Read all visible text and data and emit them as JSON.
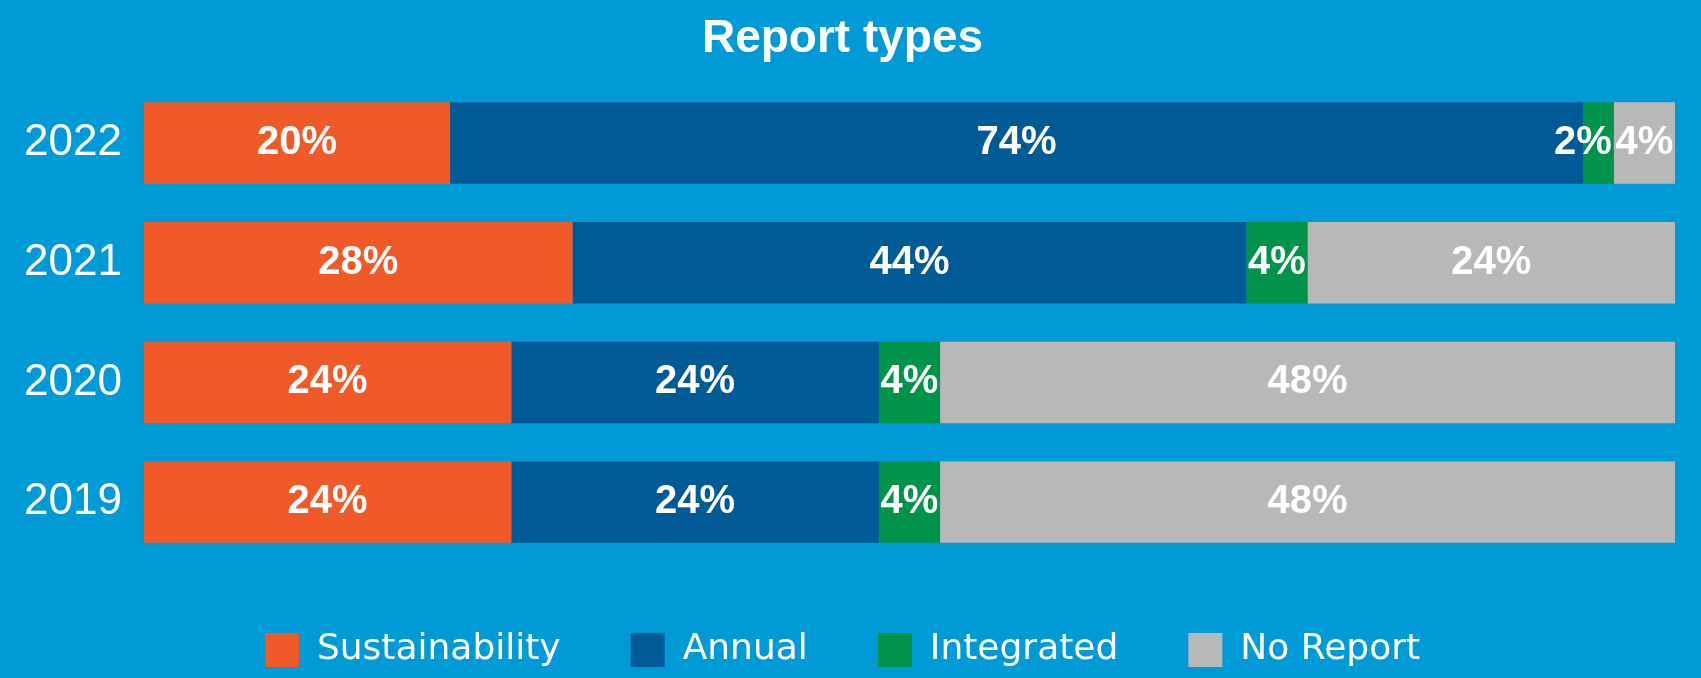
{
  "chart_data": {
    "type": "bar",
    "orientation": "horizontal",
    "stacked": true,
    "title": "Report types",
    "categories": [
      "2022",
      "2021",
      "2020",
      "2019"
    ],
    "series": [
      {
        "name": "Sustainability",
        "color": "#f05a28",
        "values": [
          20,
          28,
          24,
          24
        ],
        "value_labels": [
          "20%",
          "28%",
          "24%",
          "24%"
        ]
      },
      {
        "name": "Annual",
        "color": "#005a96",
        "values": [
          74,
          44,
          24,
          24
        ],
        "value_labels": [
          "74%",
          "44%",
          "24%",
          "24%"
        ]
      },
      {
        "name": "Integrated",
        "color": "#00934a",
        "values": [
          2,
          4,
          4,
          4
        ],
        "value_labels": [
          "2%",
          "4%",
          "4%",
          "4%"
        ]
      },
      {
        "name": "No Report",
        "color": "#b8b8b8",
        "values": [
          4,
          24,
          48,
          48
        ],
        "value_labels": [
          "4%",
          "24%",
          "48%",
          "48%"
        ]
      }
    ],
    "xlim": [
      0,
      100
    ],
    "tick_labels": "y",
    "legend": "bottom"
  }
}
